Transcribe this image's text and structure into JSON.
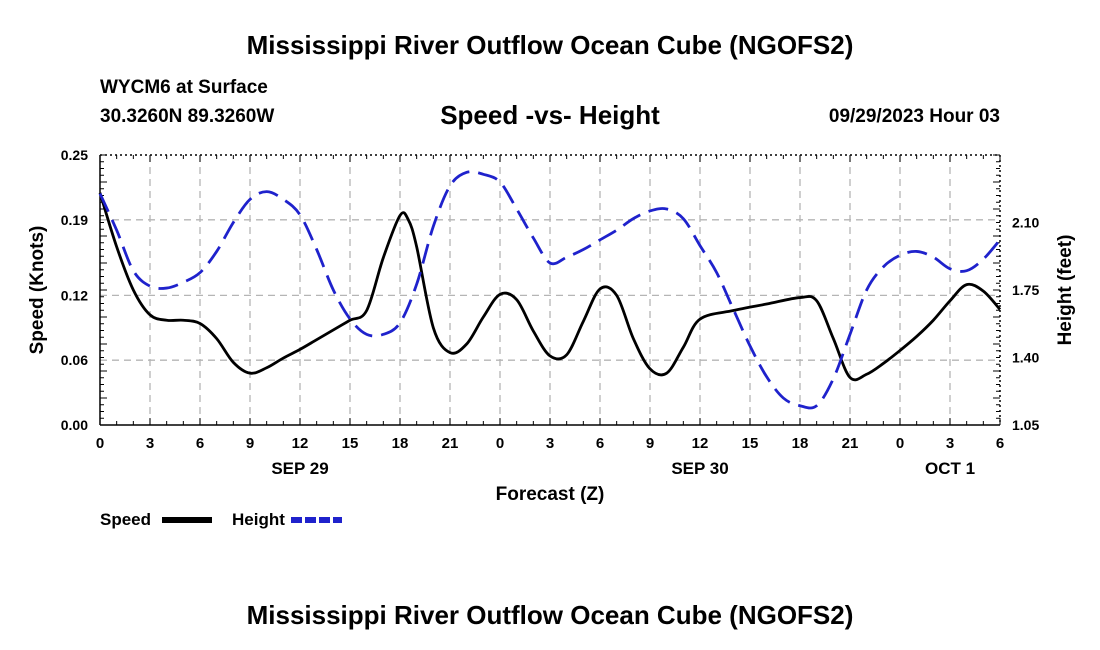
{
  "page_title": "Mississippi River Outflow Ocean Cube (NGOFS2)",
  "station": "WYCM6 at Surface",
  "coords": "30.3260N  89.3260W",
  "subtitle": "Speed -vs- Height",
  "timestamp": "09/29/2023 Hour 03",
  "footer_title": "Mississippi River Outflow Ocean Cube (NGOFS2)",
  "chart_data": {
    "type": "line",
    "title": "Speed -vs- Height",
    "xlabel": "Forecast (Z)",
    "ylabel": "Speed (Knots)",
    "y2label": "Height (feet)",
    "xlim": [
      0,
      54
    ],
    "ylim": [
      0,
      0.25
    ],
    "y2lim": [
      1.05,
      2.45
    ],
    "grid": true,
    "legend_position": "bottom-left",
    "x_ticks": [
      0,
      3,
      6,
      9,
      12,
      15,
      18,
      21,
      24,
      27,
      30,
      33,
      36,
      39,
      42,
      45,
      48,
      51,
      54
    ],
    "x_tick_labels": [
      "0",
      "3",
      "6",
      "9",
      "12",
      "15",
      "18",
      "21",
      "0",
      "3",
      "6",
      "9",
      "12",
      "15",
      "18",
      "21",
      "0",
      "3",
      "6"
    ],
    "date_labels": [
      {
        "x": 12,
        "label": "SEP 29"
      },
      {
        "x": 36,
        "label": "SEP 30"
      },
      {
        "x": 51,
        "label": "OCT 1"
      }
    ],
    "y_ticks": [
      0.0,
      0.06,
      0.12,
      0.19,
      0.25
    ],
    "y_tick_labels": [
      "0.00",
      "0.06",
      "0.12",
      "0.19",
      "0.25"
    ],
    "y2_ticks": [
      1.05,
      1.4,
      1.75,
      2.1
    ],
    "y2_tick_labels": [
      "1.05",
      "1.40",
      "1.75",
      "2.10"
    ],
    "series": [
      {
        "name": "Speed",
        "axis": "left",
        "color": "#000000",
        "dash": "solid",
        "x": [
          0,
          1,
          2,
          3,
          4,
          5,
          6,
          7,
          8,
          9,
          10,
          11,
          12,
          13,
          14,
          15,
          16,
          17,
          18,
          18.5,
          19,
          20,
          21,
          22,
          23,
          24,
          25,
          26,
          27,
          28,
          29,
          30,
          31,
          32,
          33,
          34,
          35,
          36,
          38,
          40,
          42,
          43,
          44,
          45,
          46,
          47,
          48,
          49,
          50,
          51,
          52,
          53,
          54
        ],
        "values": [
          0.215,
          0.165,
          0.125,
          0.102,
          0.097,
          0.097,
          0.094,
          0.08,
          0.058,
          0.048,
          0.053,
          0.062,
          0.07,
          0.079,
          0.088,
          0.097,
          0.106,
          0.155,
          0.194,
          0.19,
          0.165,
          0.09,
          0.067,
          0.075,
          0.1,
          0.121,
          0.116,
          0.087,
          0.064,
          0.065,
          0.096,
          0.126,
          0.12,
          0.08,
          0.052,
          0.048,
          0.072,
          0.098,
          0.106,
          0.112,
          0.118,
          0.115,
          0.08,
          0.044,
          0.047,
          0.057,
          0.069,
          0.082,
          0.097,
          0.115,
          0.13,
          0.124,
          0.107
        ]
      },
      {
        "name": "Height",
        "axis": "right",
        "color": "#1f22cc",
        "dash": "dashed",
        "x": [
          0,
          1,
          2,
          3,
          4,
          5,
          6,
          7,
          8,
          9,
          10,
          11,
          12,
          13,
          14,
          15,
          16,
          17,
          18,
          19,
          20,
          21,
          22,
          23,
          24,
          25,
          26,
          27,
          28,
          29,
          30,
          31,
          32,
          33,
          34,
          35,
          36,
          37,
          38,
          39,
          40,
          41,
          42,
          43,
          44,
          45,
          46,
          47,
          48,
          49,
          50,
          51,
          52,
          53,
          54
        ],
        "values": [
          2.25,
          2.06,
          1.85,
          1.77,
          1.76,
          1.79,
          1.84,
          1.95,
          2.1,
          2.22,
          2.26,
          2.22,
          2.14,
          1.96,
          1.75,
          1.6,
          1.52,
          1.52,
          1.58,
          1.78,
          2.08,
          2.29,
          2.36,
          2.35,
          2.31,
          2.17,
          2.02,
          1.89,
          1.92,
          1.96,
          2.01,
          2.06,
          2.12,
          2.16,
          2.17,
          2.12,
          1.98,
          1.84,
          1.65,
          1.46,
          1.3,
          1.19,
          1.15,
          1.15,
          1.29,
          1.52,
          1.75,
          1.87,
          1.93,
          1.95,
          1.92,
          1.86,
          1.85,
          1.91,
          2.01
        ]
      }
    ]
  }
}
